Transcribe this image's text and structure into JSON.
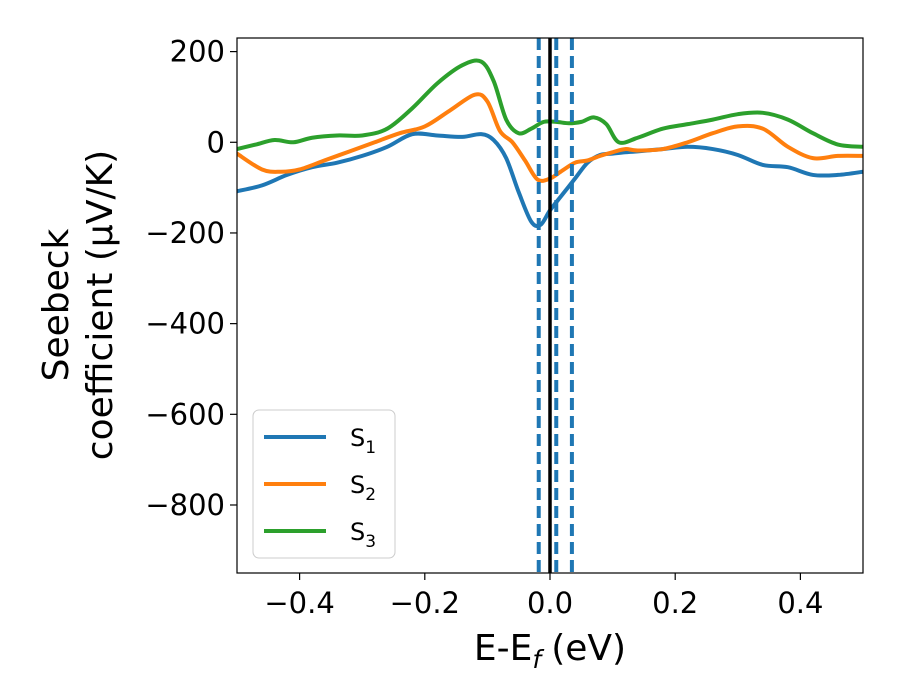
{
  "chart_data": {
    "type": "line",
    "xlabel": "E-E",
    "xlabel_sub": "f",
    "xlabel_unit": "(eV)",
    "ylabel_line1": "Seebeck",
    "ylabel_line2": "coefficient  (μV/K)",
    "xlim": [
      -0.5,
      0.5
    ],
    "ylim": [
      -950,
      230
    ],
    "xticks": [
      -0.4,
      -0.2,
      0.0,
      0.2,
      0.4
    ],
    "xtick_labels": [
      "−0.4",
      "−0.2",
      "0.0",
      "0.2",
      "0.4"
    ],
    "yticks": [
      200,
      0,
      -200,
      -400,
      -600,
      -800
    ],
    "ytick_labels": [
      "200",
      "0",
      "−200",
      "−400",
      "−600",
      "−800"
    ],
    "grid": false,
    "legend_position": "lower-left",
    "vlines": [
      {
        "x": 0.0,
        "style": "solid",
        "color": "#000000"
      },
      {
        "x": -0.018,
        "style": "dashed",
        "color": "#1f77b4"
      },
      {
        "x": 0.01,
        "style": "dashed",
        "color": "#1f77b4"
      },
      {
        "x": 0.035,
        "style": "dashed",
        "color": "#1f77b4"
      }
    ],
    "series": [
      {
        "name": "S",
        "name_sub": "1",
        "color": "#1f77b4",
        "x": [
          -0.5,
          -0.46,
          -0.42,
          -0.38,
          -0.34,
          -0.3,
          -0.26,
          -0.22,
          -0.18,
          -0.14,
          -0.11,
          -0.09,
          -0.07,
          -0.05,
          -0.03,
          -0.015,
          0.0,
          0.02,
          0.04,
          0.06,
          0.08,
          0.1,
          0.12,
          0.14,
          0.18,
          0.22,
          0.26,
          0.3,
          0.34,
          0.38,
          0.42,
          0.46,
          0.5
        ],
        "values": [
          -108,
          -95,
          -72,
          -55,
          -45,
          -30,
          -10,
          18,
          15,
          12,
          18,
          5,
          -35,
          -110,
          -175,
          -182,
          -150,
          -115,
          -80,
          -45,
          -28,
          -25,
          -22,
          -20,
          -15,
          -10,
          -15,
          -28,
          -50,
          -55,
          -72,
          -72,
          -65
        ]
      },
      {
        "name": "S",
        "name_sub": "2",
        "color": "#ff7f0e",
        "x": [
          -0.5,
          -0.46,
          -0.43,
          -0.4,
          -0.36,
          -0.32,
          -0.28,
          -0.24,
          -0.2,
          -0.16,
          -0.12,
          -0.1,
          -0.08,
          -0.06,
          -0.04,
          -0.02,
          0.0,
          0.02,
          0.04,
          0.06,
          0.08,
          0.1,
          0.12,
          0.14,
          0.18,
          0.22,
          0.26,
          0.3,
          0.34,
          0.38,
          0.42,
          0.46,
          0.5
        ],
        "values": [
          -25,
          -60,
          -65,
          -60,
          -40,
          -20,
          0,
          20,
          35,
          70,
          105,
          90,
          25,
          0,
          -40,
          -82,
          -80,
          -62,
          -45,
          -40,
          -30,
          -22,
          -15,
          -18,
          -15,
          0,
          20,
          35,
          30,
          -10,
          -35,
          -30,
          -30
        ]
      },
      {
        "name": "S",
        "name_sub": "3",
        "color": "#2ca02c",
        "x": [
          -0.5,
          -0.47,
          -0.44,
          -0.41,
          -0.38,
          -0.34,
          -0.3,
          -0.26,
          -0.22,
          -0.18,
          -0.14,
          -0.11,
          -0.09,
          -0.07,
          -0.05,
          -0.03,
          -0.01,
          0.01,
          0.03,
          0.05,
          0.07,
          0.09,
          0.11,
          0.14,
          0.18,
          0.22,
          0.26,
          0.3,
          0.34,
          0.38,
          0.42,
          0.46,
          0.5
        ],
        "values": [
          -15,
          -5,
          5,
          0,
          10,
          15,
          15,
          30,
          75,
          130,
          170,
          178,
          135,
          50,
          20,
          30,
          45,
          45,
          42,
          45,
          55,
          40,
          0,
          10,
          30,
          40,
          50,
          62,
          65,
          50,
          20,
          -5,
          -10
        ]
      }
    ]
  }
}
